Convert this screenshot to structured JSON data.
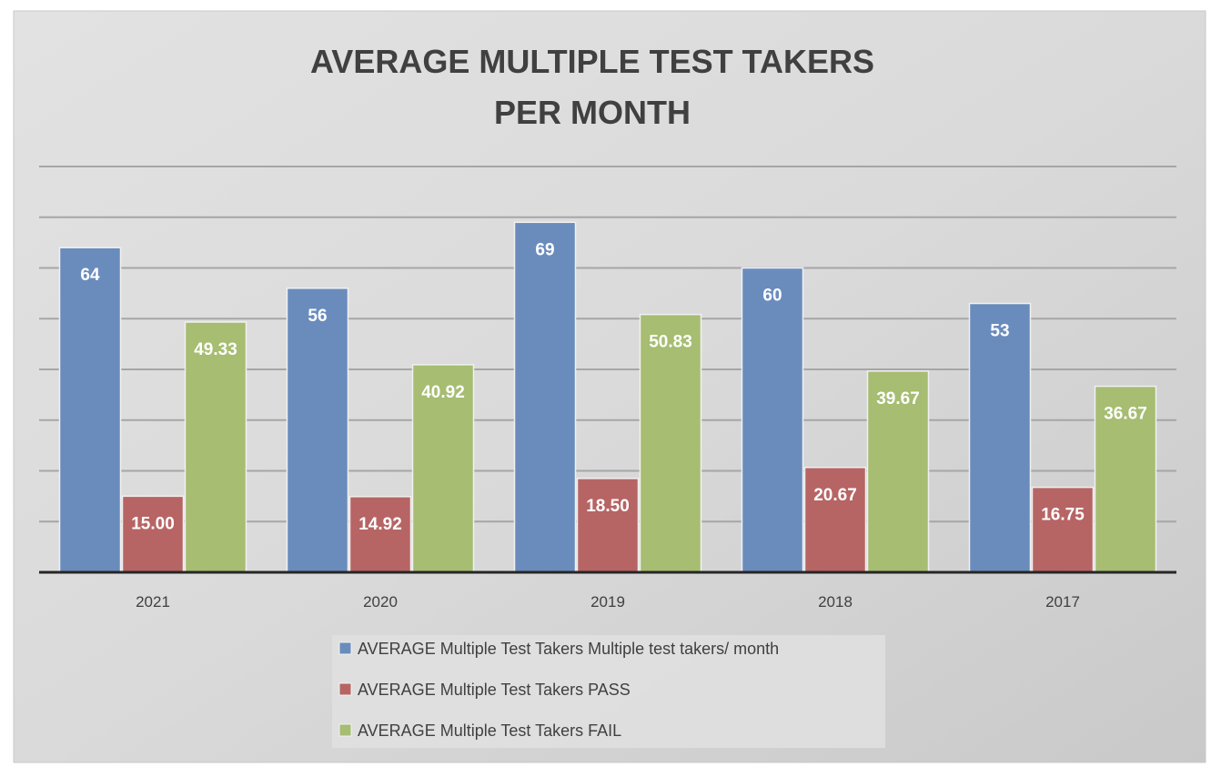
{
  "chart_data": {
    "type": "bar",
    "title_lines": [
      "AVERAGE MULTIPLE TEST TAKERS",
      "PER MONTH"
    ],
    "categories": [
      "2021",
      "2020",
      "2019",
      "2018",
      "2017"
    ],
    "series": [
      {
        "name": "AVERAGE Multiple Test Takers Multiple test takers/ month",
        "color": "#6a8cbd",
        "values": [
          64,
          56,
          69,
          60,
          53
        ],
        "labels": [
          "64",
          "56",
          "69",
          "60",
          "53"
        ]
      },
      {
        "name": "AVERAGE Multiple Test Takers PASS",
        "color": "#b66564",
        "values": [
          15.0,
          14.92,
          18.5,
          20.67,
          16.75
        ],
        "labels": [
          "15.00",
          "14.92",
          "18.50",
          "20.67",
          "16.75"
        ]
      },
      {
        "name": "AVERAGE Multiple Test Takers FAIL",
        "color": "#a6bd72",
        "values": [
          49.33,
          40.92,
          50.83,
          39.67,
          36.67
        ],
        "labels": [
          "49.33",
          "40.92",
          "50.83",
          "39.67",
          "36.67"
        ]
      }
    ],
    "xlabel": "",
    "ylabel": "",
    "ylim": [
      0,
      80
    ],
    "grid_step": 10,
    "grid": true,
    "y_axis_labels_shown": false,
    "legend_position": "bottom"
  }
}
